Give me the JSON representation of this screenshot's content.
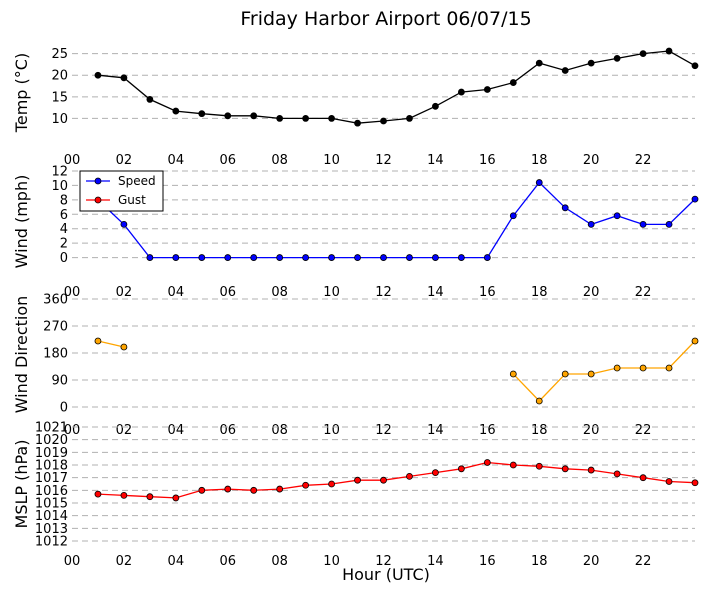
{
  "title": "Friday Harbor Airport 06/07/15",
  "xlabel": "Hour (UTC)",
  "chart_data": [
    {
      "type": "line",
      "ylabel": "Temp (°C)",
      "ylim": [
        5,
        27
      ],
      "yticks": [
        10,
        15,
        20,
        25
      ],
      "xlim": [
        0,
        24
      ],
      "xticks": [
        "00",
        "02",
        "04",
        "06",
        "08",
        "10",
        "12",
        "14",
        "16",
        "18",
        "20",
        "22"
      ],
      "grid": true,
      "series": [
        {
          "color": "#000000",
          "x": [
            1,
            2,
            3,
            4,
            5,
            6,
            7,
            8,
            9,
            10,
            11,
            12,
            13,
            14,
            15,
            16,
            17,
            18,
            19,
            20,
            21,
            22,
            23,
            24
          ],
          "values": [
            20.0,
            19.4,
            14.4,
            11.7,
            11.1,
            10.6,
            10.6,
            10.0,
            10.0,
            10.0,
            8.9,
            9.4,
            10.0,
            12.8,
            16.1,
            16.7,
            18.3,
            22.8,
            21.1,
            22.8,
            23.9,
            25.0,
            25.6,
            22.2
          ]
        }
      ]
    },
    {
      "type": "line",
      "ylabel": "Wind (mph)",
      "ylim": [
        -2,
        12
      ],
      "yticks": [
        0,
        2,
        4,
        6,
        8,
        10,
        12
      ],
      "xlim": [
        0,
        24
      ],
      "xticks": [
        "00",
        "02",
        "04",
        "06",
        "08",
        "10",
        "12",
        "14",
        "16",
        "18",
        "20",
        "22"
      ],
      "grid": true,
      "legend": "top-left",
      "series": [
        {
          "name": "Speed",
          "color": "#0000ff",
          "x": [
            1,
            2,
            3,
            4,
            5,
            6,
            7,
            8,
            9,
            10,
            11,
            12,
            13,
            14,
            15,
            16,
            17,
            18,
            19,
            20,
            21,
            22,
            23,
            24
          ],
          "values": [
            8,
            4.6,
            0,
            0,
            0,
            0,
            0,
            0,
            0,
            0,
            0,
            0,
            0,
            0,
            0,
            0,
            5.8,
            10.4,
            6.9,
            4.6,
            5.8,
            4.6,
            4.6,
            8.1
          ]
        },
        {
          "name": "Gust",
          "color": "#ff0000",
          "x": [],
          "values": []
        }
      ]
    },
    {
      "type": "line",
      "ylabel": "Wind Direction",
      "ylim": [
        -10,
        360
      ],
      "yticks": [
        0,
        90,
        180,
        270,
        360
      ],
      "xlim": [
        0,
        24
      ],
      "xticks": [
        "00",
        "02",
        "04",
        "06",
        "08",
        "10",
        "12",
        "14",
        "16",
        "18",
        "20",
        "22"
      ],
      "grid": true,
      "series": [
        {
          "color": "#ffa500",
          "x": [
            1,
            2,
            17,
            18,
            19,
            20,
            21,
            22,
            23,
            24
          ],
          "values": [
            220,
            200,
            110,
            20,
            110,
            110,
            130,
            130,
            130,
            220
          ],
          "segments": [
            [
              0,
              1
            ],
            [
              2,
              9
            ]
          ]
        }
      ]
    },
    {
      "type": "line",
      "ylabel": "MSLP (hPa)",
      "ylim": [
        1012,
        1021
      ],
      "yticks": [
        1012,
        1013,
        1014,
        1015,
        1016,
        1017,
        1018,
        1019,
        1020,
        1021
      ],
      "xlim": [
        0,
        24
      ],
      "xticks": [
        "00",
        "02",
        "04",
        "06",
        "08",
        "10",
        "12",
        "14",
        "16",
        "18",
        "20",
        "22"
      ],
      "grid": true,
      "series": [
        {
          "color": "#ff0000",
          "x": [
            1,
            2,
            3,
            4,
            5,
            6,
            7,
            8,
            9,
            10,
            11,
            12,
            13,
            14,
            15,
            16,
            17,
            18,
            19,
            20,
            21,
            22,
            23,
            24
          ],
          "values": [
            1015.7,
            1015.6,
            1015.5,
            1015.4,
            1016.0,
            1016.1,
            1016.0,
            1016.1,
            1016.4,
            1016.5,
            1016.8,
            1016.8,
            1017.1,
            1017.4,
            1017.7,
            1018.2,
            1018.0,
            1017.9,
            1017.7,
            1017.6,
            1017.3,
            1017.0,
            1016.7,
            1016.6
          ]
        }
      ]
    }
  ]
}
